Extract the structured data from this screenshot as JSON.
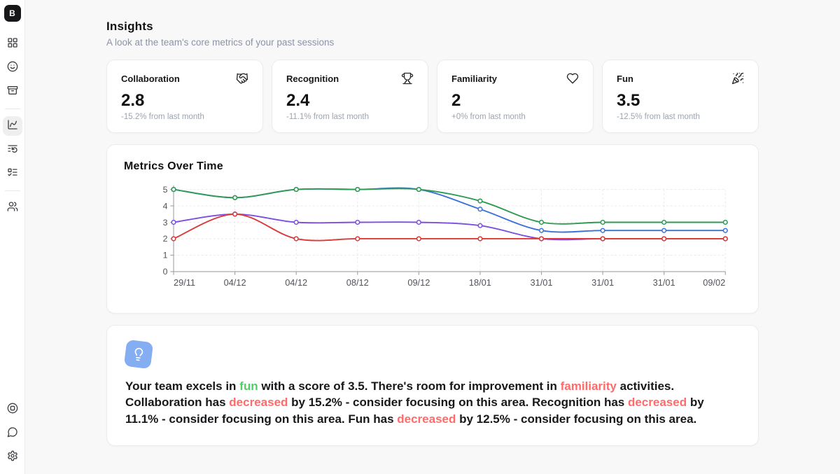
{
  "sidebar": {
    "logo": "B",
    "items": [
      "layout-grid-icon",
      "smiley-icon",
      "box-icon",
      "line-chart-icon",
      "session-history-icon",
      "task-list-icon",
      "team-icon"
    ],
    "active_item": "line-chart-icon",
    "bottom_items": [
      "support-icon",
      "chat-icon",
      "settings-icon"
    ]
  },
  "header": {
    "title": "Insights",
    "subtitle": "A look at the team's core metrics of your past sessions"
  },
  "cards": [
    {
      "title": "Collaboration",
      "icon": "handshake-icon",
      "value": "2.8",
      "change": "-15.2% from last month"
    },
    {
      "title": "Recognition",
      "icon": "trophy-icon",
      "value": "2.4",
      "change": "-11.1% from last month"
    },
    {
      "title": "Familiarity",
      "icon": "heart-icon",
      "value": "2",
      "change": "+0% from last month"
    },
    {
      "title": "Fun",
      "icon": "party-popper-icon",
      "value": "3.5",
      "change": "-12.5% from last month"
    }
  ],
  "chart_data": {
    "type": "line",
    "title": "Metrics Over Time",
    "x": [
      "29/11",
      "04/12",
      "04/12",
      "08/12",
      "09/12",
      "18/01",
      "31/01",
      "31/01",
      "31/01",
      "09/02"
    ],
    "series": [
      {
        "name": "purple",
        "color": "#7c4fe0",
        "values": [
          3,
          3.5,
          3,
          3,
          3,
          2.8,
          2,
          2,
          2,
          2
        ]
      },
      {
        "name": "blue",
        "color": "#3b72d8",
        "values": [
          5,
          4.5,
          5,
          5,
          5,
          3.8,
          2.5,
          2.5,
          2.5,
          2.5
        ]
      },
      {
        "name": "green",
        "color": "#2d9b51",
        "values": [
          5,
          4.5,
          5,
          5,
          5,
          4.3,
          3,
          3,
          3,
          3
        ]
      },
      {
        "name": "red",
        "color": "#d93b3b",
        "values": [
          2,
          3.5,
          2,
          2,
          2,
          2,
          2,
          2,
          2,
          2
        ]
      }
    ],
    "ylim": [
      0,
      5
    ],
    "yticks": [
      0,
      1,
      2,
      3,
      4,
      5
    ],
    "grid": true,
    "legend": false,
    "axis_color": "#a1a1aa",
    "grid_color": "#e8e8ea",
    "tick_label_color": "#52525b"
  },
  "insight": {
    "icon": "lightbulb-icon",
    "icon_bg": "#85aef2",
    "colors": {
      "dark": "#18181b",
      "green": "#51cf66",
      "red": "#ff6b6b"
    },
    "segments": [
      {
        "text": "Your team excels in ",
        "color": "dark"
      },
      {
        "text": "fun",
        "color": "green"
      },
      {
        "text": " with a score of 3.5. There's room for improvement in ",
        "color": "dark"
      },
      {
        "text": "familiarity",
        "color": "red"
      },
      {
        "text": " activities. Collaboration has ",
        "color": "dark"
      },
      {
        "text": "decreased",
        "color": "red"
      },
      {
        "text": " by 15.2% - consider focusing on this area. Recognition has ",
        "color": "dark"
      },
      {
        "text": "decreased",
        "color": "red"
      },
      {
        "text": " by 11.1% - consider focusing on this area. Fun has ",
        "color": "dark"
      },
      {
        "text": "decreased",
        "color": "red"
      },
      {
        "text": " by 12.5% - consider focusing on this area.",
        "color": "dark"
      }
    ]
  }
}
